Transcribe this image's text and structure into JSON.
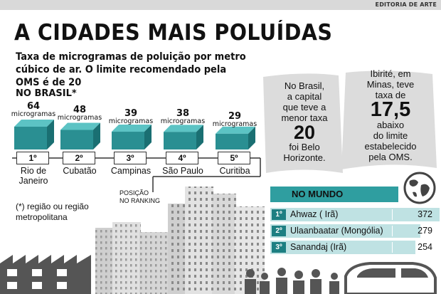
{
  "header": {
    "editoria": "EDITORIA DE ARTE"
  },
  "title": "A CIDADES MAIS POLUÍDAS",
  "subtitle": "Taxa de microgramas de poluição por metro cúbico de ar. O limite recomendado pela OMS é de 20",
  "brasil_label": "NO BRASIL*",
  "unit_label": "microgramas",
  "posicao_label": [
    "POSIÇÃO",
    "NO RANKING"
  ],
  "note": "(*) região ou região metropolitana",
  "panel_brasil": {
    "line1": "No Brasil,",
    "line2": "a capital",
    "line3": "que teve a",
    "line4": "menor taxa",
    "value": "20",
    "line5": "foi Belo",
    "line6": "Horizonte."
  },
  "panel_ibirite": {
    "line1": "Ibirité, em",
    "line2": "Minas, teve",
    "line3": "taxa de",
    "value": "17,5",
    "line4": "abaixo",
    "line5": "do limite",
    "line6": "estabelecido",
    "line7": "pela OMS."
  },
  "mundo_label": "NO MUNDO",
  "colors": {
    "teal": "#2f9ea0",
    "teal_dark": "#1d7f82",
    "teal_light": "#bfe2e3",
    "box_front": "#2a8f92",
    "box_top": "#5cc3c4",
    "box_side": "#1a6f72"
  },
  "chart_data": [
    {
      "type": "bar",
      "title": "NO BRASIL*",
      "categories": [
        "Rio de Janeiro",
        "Cubatão",
        "Campinas",
        "São Paulo",
        "Curitiba"
      ],
      "category_lines": [
        [
          "Rio de",
          "Janeiro"
        ],
        [
          "Cubatão"
        ],
        [
          "Campinas"
        ],
        [
          "São Paulo"
        ],
        [
          "Curitiba"
        ]
      ],
      "ranks": [
        "1º",
        "2º",
        "3º",
        "4º",
        "5º"
      ],
      "values": [
        64,
        48,
        39,
        38,
        29
      ],
      "value_labels": [
        "64",
        "48",
        "39",
        "38",
        "29"
      ],
      "unit": "microgramas"
    },
    {
      "type": "bar",
      "title": "NO MUNDO",
      "categories": [
        "Ahwaz ( Irã)",
        "Ulaanbaatar (Mongólia)",
        "Sanandaj (Irã)"
      ],
      "ranks": [
        "1º",
        "2º",
        "3º"
      ],
      "values": [
        372,
        279,
        254
      ],
      "value_labels": [
        "372",
        "279",
        "254"
      ]
    }
  ]
}
